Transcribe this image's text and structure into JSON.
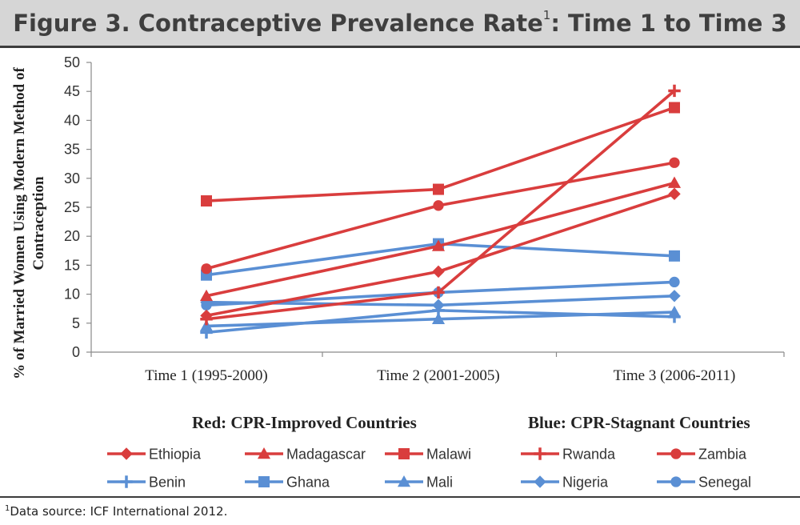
{
  "header": {
    "title_main": "Figure 3. Contraceptive Prevalence Rate",
    "title_sup": "1",
    "title_tail": ": Time 1 to Time 3"
  },
  "footnote": {
    "sup": "1",
    "text": "Data source: ICF International 2012."
  },
  "chart_data": {
    "type": "line",
    "ylabel_lines": [
      "% of Married Women Using Modern Method of",
      "Contraception"
    ],
    "categories": [
      "Time 1 (1995-2000)",
      "Time 2 (2001-2005)",
      "Time 3 (2006-2011)"
    ],
    "ylim": [
      0,
      50
    ],
    "yticks": [
      0,
      5,
      10,
      15,
      20,
      25,
      30,
      35,
      40,
      45,
      50
    ],
    "grid": false,
    "legend_position": "bottom",
    "legend_groups": [
      "Red: CPR-Improved Countries",
      "Blue: CPR-Stagnant Countries"
    ],
    "colors": {
      "improved": "#d93d3d",
      "stagnant": "#5a8fd4"
    },
    "series": [
      {
        "name": "Ethiopia",
        "group": "improved",
        "marker": "diamond",
        "values": [
          6.3,
          13.9,
          27.3
        ]
      },
      {
        "name": "Madagascar",
        "group": "improved",
        "marker": "triangle",
        "values": [
          9.7,
          18.3,
          29.2
        ]
      },
      {
        "name": "Malawi",
        "group": "improved",
        "marker": "square",
        "values": [
          26.1,
          28.1,
          42.2
        ]
      },
      {
        "name": "Rwanda",
        "group": "improved",
        "marker": "plus",
        "values": [
          5.7,
          10.3,
          45.1
        ]
      },
      {
        "name": "Zambia",
        "group": "improved",
        "marker": "circle",
        "values": [
          14.4,
          25.3,
          32.7
        ]
      },
      {
        "name": "Benin",
        "group": "stagnant",
        "marker": "plus",
        "values": [
          3.4,
          7.2,
          6.1
        ]
      },
      {
        "name": "Ghana",
        "group": "stagnant",
        "marker": "square",
        "values": [
          13.3,
          18.7,
          16.6
        ]
      },
      {
        "name": "Mali",
        "group": "stagnant",
        "marker": "triangle",
        "values": [
          4.5,
          5.7,
          6.9
        ]
      },
      {
        "name": "Nigeria",
        "group": "stagnant",
        "marker": "diamond",
        "values": [
          8.6,
          8.1,
          9.7
        ]
      },
      {
        "name": "Senegal",
        "group": "stagnant",
        "marker": "circle",
        "values": [
          8.1,
          10.3,
          12.1
        ]
      }
    ]
  }
}
